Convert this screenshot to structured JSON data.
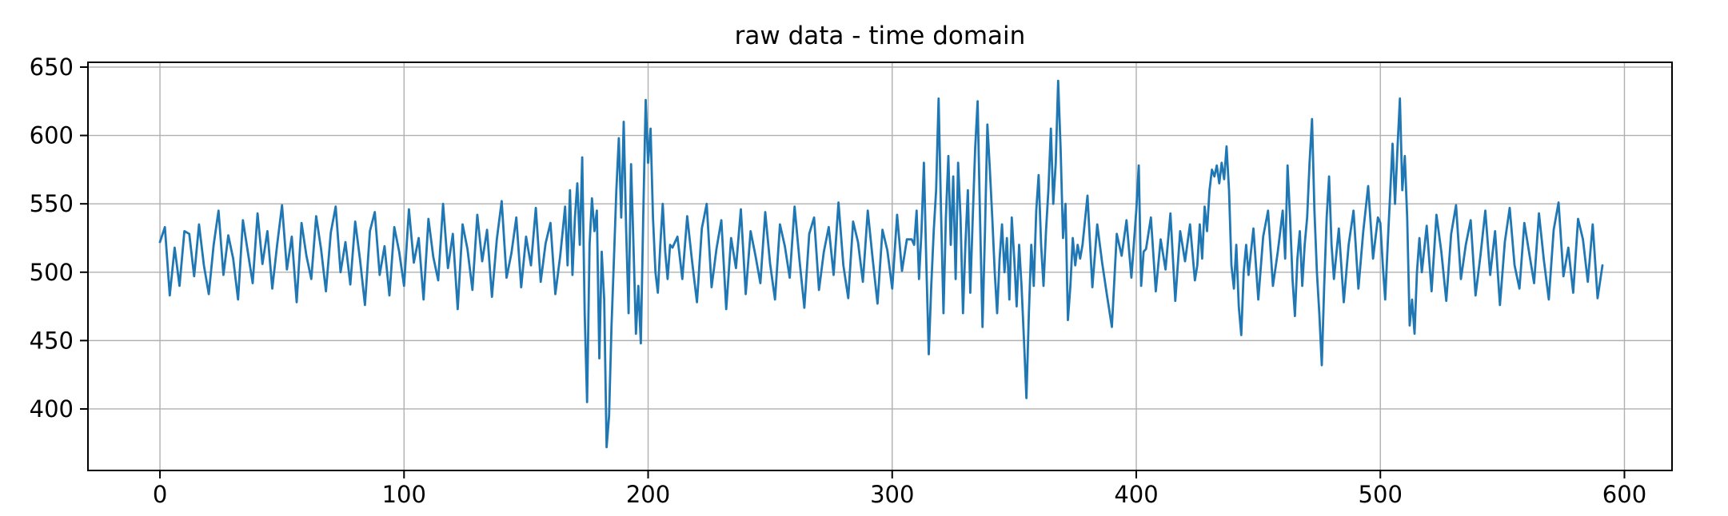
{
  "chart_data": {
    "type": "line",
    "title": "raw data - time domain",
    "xlabel": "",
    "ylabel": "",
    "xlim": [
      -29.5,
      619.5
    ],
    "ylim": [
      355,
      653.5
    ],
    "xticks": [
      0,
      100,
      200,
      300,
      400,
      500,
      600
    ],
    "yticks": [
      400,
      450,
      500,
      550,
      600,
      650
    ],
    "grid": true,
    "legend": "none",
    "line_color": "#1f77b4",
    "grid_color": "#b0b0b0",
    "spine_color": "#000000",
    "points": [
      [
        0,
        522
      ],
      [
        2,
        533
      ],
      [
        4,
        483
      ],
      [
        6,
        518
      ],
      [
        8,
        490
      ],
      [
        10,
        530
      ],
      [
        12,
        528
      ],
      [
        14,
        497
      ],
      [
        16,
        535
      ],
      [
        18,
        505
      ],
      [
        20,
        484
      ],
      [
        22,
        520
      ],
      [
        24,
        545
      ],
      [
        26,
        498
      ],
      [
        28,
        527
      ],
      [
        30,
        510
      ],
      [
        32,
        480
      ],
      [
        34,
        538
      ],
      [
        36,
        515
      ],
      [
        38,
        492
      ],
      [
        40,
        543
      ],
      [
        42,
        506
      ],
      [
        44,
        530
      ],
      [
        46,
        488
      ],
      [
        48,
        520
      ],
      [
        50,
        549
      ],
      [
        52,
        502
      ],
      [
        54,
        526
      ],
      [
        56,
        478
      ],
      [
        58,
        536
      ],
      [
        60,
        512
      ],
      [
        62,
        495
      ],
      [
        64,
        541
      ],
      [
        66,
        517
      ],
      [
        68,
        486
      ],
      [
        70,
        529
      ],
      [
        72,
        548
      ],
      [
        74,
        500
      ],
      [
        76,
        522
      ],
      [
        78,
        491
      ],
      [
        80,
        537
      ],
      [
        82,
        509
      ],
      [
        84,
        476
      ],
      [
        86,
        530
      ],
      [
        88,
        544
      ],
      [
        90,
        498
      ],
      [
        92,
        519
      ],
      [
        94,
        483
      ],
      [
        96,
        533
      ],
      [
        98,
        515
      ],
      [
        100,
        490
      ],
      [
        102,
        546
      ],
      [
        104,
        507
      ],
      [
        106,
        525
      ],
      [
        108,
        480
      ],
      [
        110,
        539
      ],
      [
        112,
        511
      ],
      [
        114,
        494
      ],
      [
        116,
        550
      ],
      [
        118,
        503
      ],
      [
        120,
        528
      ],
      [
        122,
        473
      ],
      [
        124,
        535
      ],
      [
        126,
        517
      ],
      [
        128,
        487
      ],
      [
        130,
        542
      ],
      [
        132,
        508
      ],
      [
        134,
        531
      ],
      [
        136,
        482
      ],
      [
        138,
        524
      ],
      [
        140,
        552
      ],
      [
        142,
        496
      ],
      [
        144,
        514
      ],
      [
        146,
        540
      ],
      [
        148,
        489
      ],
      [
        150,
        526
      ],
      [
        152,
        505
      ],
      [
        154,
        547
      ],
      [
        156,
        493
      ],
      [
        158,
        521
      ],
      [
        160,
        536
      ],
      [
        162,
        484
      ],
      [
        164,
        512
      ],
      [
        165,
        530
      ],
      [
        166,
        548
      ],
      [
        167,
        505
      ],
      [
        168,
        560
      ],
      [
        169,
        498
      ],
      [
        170,
        540
      ],
      [
        171,
        565
      ],
      [
        172,
        520
      ],
      [
        173,
        584
      ],
      [
        174,
        470
      ],
      [
        175,
        405
      ],
      [
        176,
        520
      ],
      [
        177,
        554
      ],
      [
        178,
        530
      ],
      [
        179,
        545
      ],
      [
        180,
        437
      ],
      [
        181,
        515
      ],
      [
        182,
        480
      ],
      [
        183,
        372
      ],
      [
        184,
        395
      ],
      [
        185,
        460
      ],
      [
        186,
        510
      ],
      [
        187,
        560
      ],
      [
        188,
        598
      ],
      [
        189,
        540
      ],
      [
        190,
        610
      ],
      [
        191,
        530
      ],
      [
        192,
        470
      ],
      [
        193,
        579
      ],
      [
        194,
        520
      ],
      [
        195,
        455
      ],
      [
        196,
        490
      ],
      [
        197,
        448
      ],
      [
        198,
        540
      ],
      [
        199,
        626
      ],
      [
        200,
        580
      ],
      [
        201,
        605
      ],
      [
        202,
        540
      ],
      [
        203,
        500
      ],
      [
        204,
        485
      ],
      [
        205,
        520
      ],
      [
        206,
        550
      ],
      [
        207,
        515
      ],
      [
        208,
        495
      ],
      [
        209,
        520
      ],
      [
        210,
        518
      ],
      [
        212,
        526
      ],
      [
        214,
        495
      ],
      [
        216,
        541
      ],
      [
        218,
        508
      ],
      [
        220,
        478
      ],
      [
        222,
        532
      ],
      [
        224,
        550
      ],
      [
        226,
        489
      ],
      [
        228,
        517
      ],
      [
        230,
        538
      ],
      [
        232,
        473
      ],
      [
        234,
        525
      ],
      [
        236,
        503
      ],
      [
        238,
        546
      ],
      [
        240,
        484
      ],
      [
        242,
        530
      ],
      [
        244,
        512
      ],
      [
        246,
        492
      ],
      [
        248,
        544
      ],
      [
        250,
        506
      ],
      [
        252,
        480
      ],
      [
        254,
        535
      ],
      [
        256,
        519
      ],
      [
        258,
        496
      ],
      [
        260,
        548
      ],
      [
        262,
        509
      ],
      [
        264,
        474
      ],
      [
        266,
        528
      ],
      [
        268,
        540
      ],
      [
        270,
        487
      ],
      [
        272,
        515
      ],
      [
        274,
        533
      ],
      [
        276,
        498
      ],
      [
        278,
        551
      ],
      [
        280,
        505
      ],
      [
        282,
        481
      ],
      [
        284,
        537
      ],
      [
        286,
        522
      ],
      [
        288,
        493
      ],
      [
        290,
        545
      ],
      [
        292,
        510
      ],
      [
        294,
        477
      ],
      [
        296,
        531
      ],
      [
        298,
        516
      ],
      [
        300,
        488
      ],
      [
        302,
        542
      ],
      [
        304,
        501
      ],
      [
        306,
        524
      ],
      [
        308,
        524
      ],
      [
        309,
        520
      ],
      [
        310,
        545
      ],
      [
        311,
        495
      ],
      [
        312,
        530
      ],
      [
        313,
        580
      ],
      [
        314,
        505
      ],
      [
        315,
        440
      ],
      [
        316,
        490
      ],
      [
        317,
        530
      ],
      [
        318,
        560
      ],
      [
        319,
        627
      ],
      [
        320,
        545
      ],
      [
        321,
        470
      ],
      [
        322,
        540
      ],
      [
        323,
        585
      ],
      [
        324,
        520
      ],
      [
        325,
        570
      ],
      [
        326,
        495
      ],
      [
        327,
        580
      ],
      [
        328,
        540
      ],
      [
        329,
        470
      ],
      [
        330,
        520
      ],
      [
        331,
        560
      ],
      [
        332,
        485
      ],
      [
        333,
        540
      ],
      [
        334,
        590
      ],
      [
        335,
        625
      ],
      [
        336,
        540
      ],
      [
        337,
        460
      ],
      [
        338,
        530
      ],
      [
        339,
        608
      ],
      [
        340,
        575
      ],
      [
        341,
        540
      ],
      [
        342,
        500
      ],
      [
        343,
        470
      ],
      [
        344,
        510
      ],
      [
        345,
        535
      ],
      [
        346,
        500
      ],
      [
        347,
        525
      ],
      [
        348,
        480
      ],
      [
        349,
        540
      ],
      [
        350,
        510
      ],
      [
        351,
        475
      ],
      [
        352,
        520
      ],
      [
        353,
        490
      ],
      [
        354,
        450
      ],
      [
        355,
        408
      ],
      [
        356,
        470
      ],
      [
        357,
        520
      ],
      [
        358,
        490
      ],
      [
        359,
        545
      ],
      [
        360,
        571
      ],
      [
        361,
        520
      ],
      [
        362,
        490
      ],
      [
        363,
        530
      ],
      [
        364,
        560
      ],
      [
        365,
        605
      ],
      [
        366,
        550
      ],
      [
        367,
        580
      ],
      [
        368,
        640
      ],
      [
        369,
        590
      ],
      [
        370,
        525
      ],
      [
        371,
        550
      ],
      [
        372,
        465
      ],
      [
        373,
        490
      ],
      [
        374,
        525
      ],
      [
        375,
        505
      ],
      [
        376,
        520
      ],
      [
        377,
        510
      ],
      [
        378,
        520
      ],
      [
        380,
        556
      ],
      [
        382,
        489
      ],
      [
        384,
        535
      ],
      [
        386,
        507
      ],
      [
        388,
        483
      ],
      [
        390,
        460
      ],
      [
        392,
        528
      ],
      [
        394,
        512
      ],
      [
        396,
        538
      ],
      [
        398,
        496
      ],
      [
        400,
        545
      ],
      [
        401,
        578
      ],
      [
        402,
        490
      ],
      [
        403,
        515
      ],
      [
        404,
        517
      ],
      [
        406,
        540
      ],
      [
        408,
        486
      ],
      [
        410,
        524
      ],
      [
        412,
        502
      ],
      [
        414,
        543
      ],
      [
        416,
        479
      ],
      [
        418,
        530
      ],
      [
        420,
        508
      ],
      [
        422,
        535
      ],
      [
        424,
        494
      ],
      [
        425,
        505
      ],
      [
        426,
        535
      ],
      [
        427,
        510
      ],
      [
        428,
        548
      ],
      [
        429,
        530
      ],
      [
        430,
        560
      ],
      [
        431,
        575
      ],
      [
        432,
        570
      ],
      [
        433,
        578
      ],
      [
        434,
        565
      ],
      [
        435,
        580
      ],
      [
        436,
        568
      ],
      [
        437,
        592
      ],
      [
        438,
        560
      ],
      [
        439,
        505
      ],
      [
        440,
        488
      ],
      [
        441,
        520
      ],
      [
        442,
        475
      ],
      [
        443,
        454
      ],
      [
        444,
        500
      ],
      [
        445,
        520
      ],
      [
        446,
        498
      ],
      [
        448,
        532
      ],
      [
        450,
        480
      ],
      [
        452,
        526
      ],
      [
        454,
        545
      ],
      [
        456,
        490
      ],
      [
        458,
        515
      ],
      [
        459,
        530
      ],
      [
        460,
        545
      ],
      [
        461,
        510
      ],
      [
        462,
        578
      ],
      [
        463,
        540
      ],
      [
        464,
        495
      ],
      [
        465,
        468
      ],
      [
        466,
        510
      ],
      [
        467,
        530
      ],
      [
        468,
        490
      ],
      [
        469,
        520
      ],
      [
        470,
        540
      ],
      [
        471,
        580
      ],
      [
        472,
        612
      ],
      [
        473,
        545
      ],
      [
        474,
        500
      ],
      [
        475,
        470
      ],
      [
        476,
        432
      ],
      [
        477,
        490
      ],
      [
        478,
        540
      ],
      [
        479,
        570
      ],
      [
        480,
        520
      ],
      [
        481,
        495
      ],
      [
        483,
        532
      ],
      [
        485,
        478
      ],
      [
        487,
        520
      ],
      [
        489,
        545
      ],
      [
        491,
        488
      ],
      [
        493,
        530
      ],
      [
        495,
        563
      ],
      [
        497,
        510
      ],
      [
        499,
        540
      ],
      [
        500,
        536
      ],
      [
        501,
        505
      ],
      [
        502,
        480
      ],
      [
        503,
        520
      ],
      [
        504,
        556
      ],
      [
        505,
        594
      ],
      [
        506,
        550
      ],
      [
        507,
        590
      ],
      [
        508,
        627
      ],
      [
        509,
        560
      ],
      [
        510,
        585
      ],
      [
        511,
        540
      ],
      [
        512,
        461
      ],
      [
        513,
        480
      ],
      [
        514,
        455
      ],
      [
        515,
        500
      ],
      [
        516,
        525
      ],
      [
        517,
        500
      ],
      [
        519,
        534
      ],
      [
        521,
        486
      ],
      [
        523,
        542
      ],
      [
        525,
        515
      ],
      [
        527,
        479
      ],
      [
        529,
        528
      ],
      [
        531,
        549
      ],
      [
        533,
        495
      ],
      [
        535,
        520
      ],
      [
        537,
        538
      ],
      [
        539,
        483
      ],
      [
        541,
        512
      ],
      [
        543,
        545
      ],
      [
        545,
        498
      ],
      [
        547,
        530
      ],
      [
        549,
        476
      ],
      [
        551,
        522
      ],
      [
        553,
        547
      ],
      [
        555,
        505
      ],
      [
        557,
        488
      ],
      [
        559,
        536
      ],
      [
        561,
        514
      ],
      [
        563,
        492
      ],
      [
        565,
        543
      ],
      [
        567,
        509
      ],
      [
        569,
        480
      ],
      [
        571,
        531
      ],
      [
        573,
        551
      ],
      [
        575,
        497
      ],
      [
        577,
        518
      ],
      [
        579,
        485
      ],
      [
        581,
        539
      ],
      [
        583,
        524
      ],
      [
        585,
        493
      ],
      [
        587,
        535
      ],
      [
        589,
        481
      ],
      [
        591,
        505
      ]
    ]
  }
}
